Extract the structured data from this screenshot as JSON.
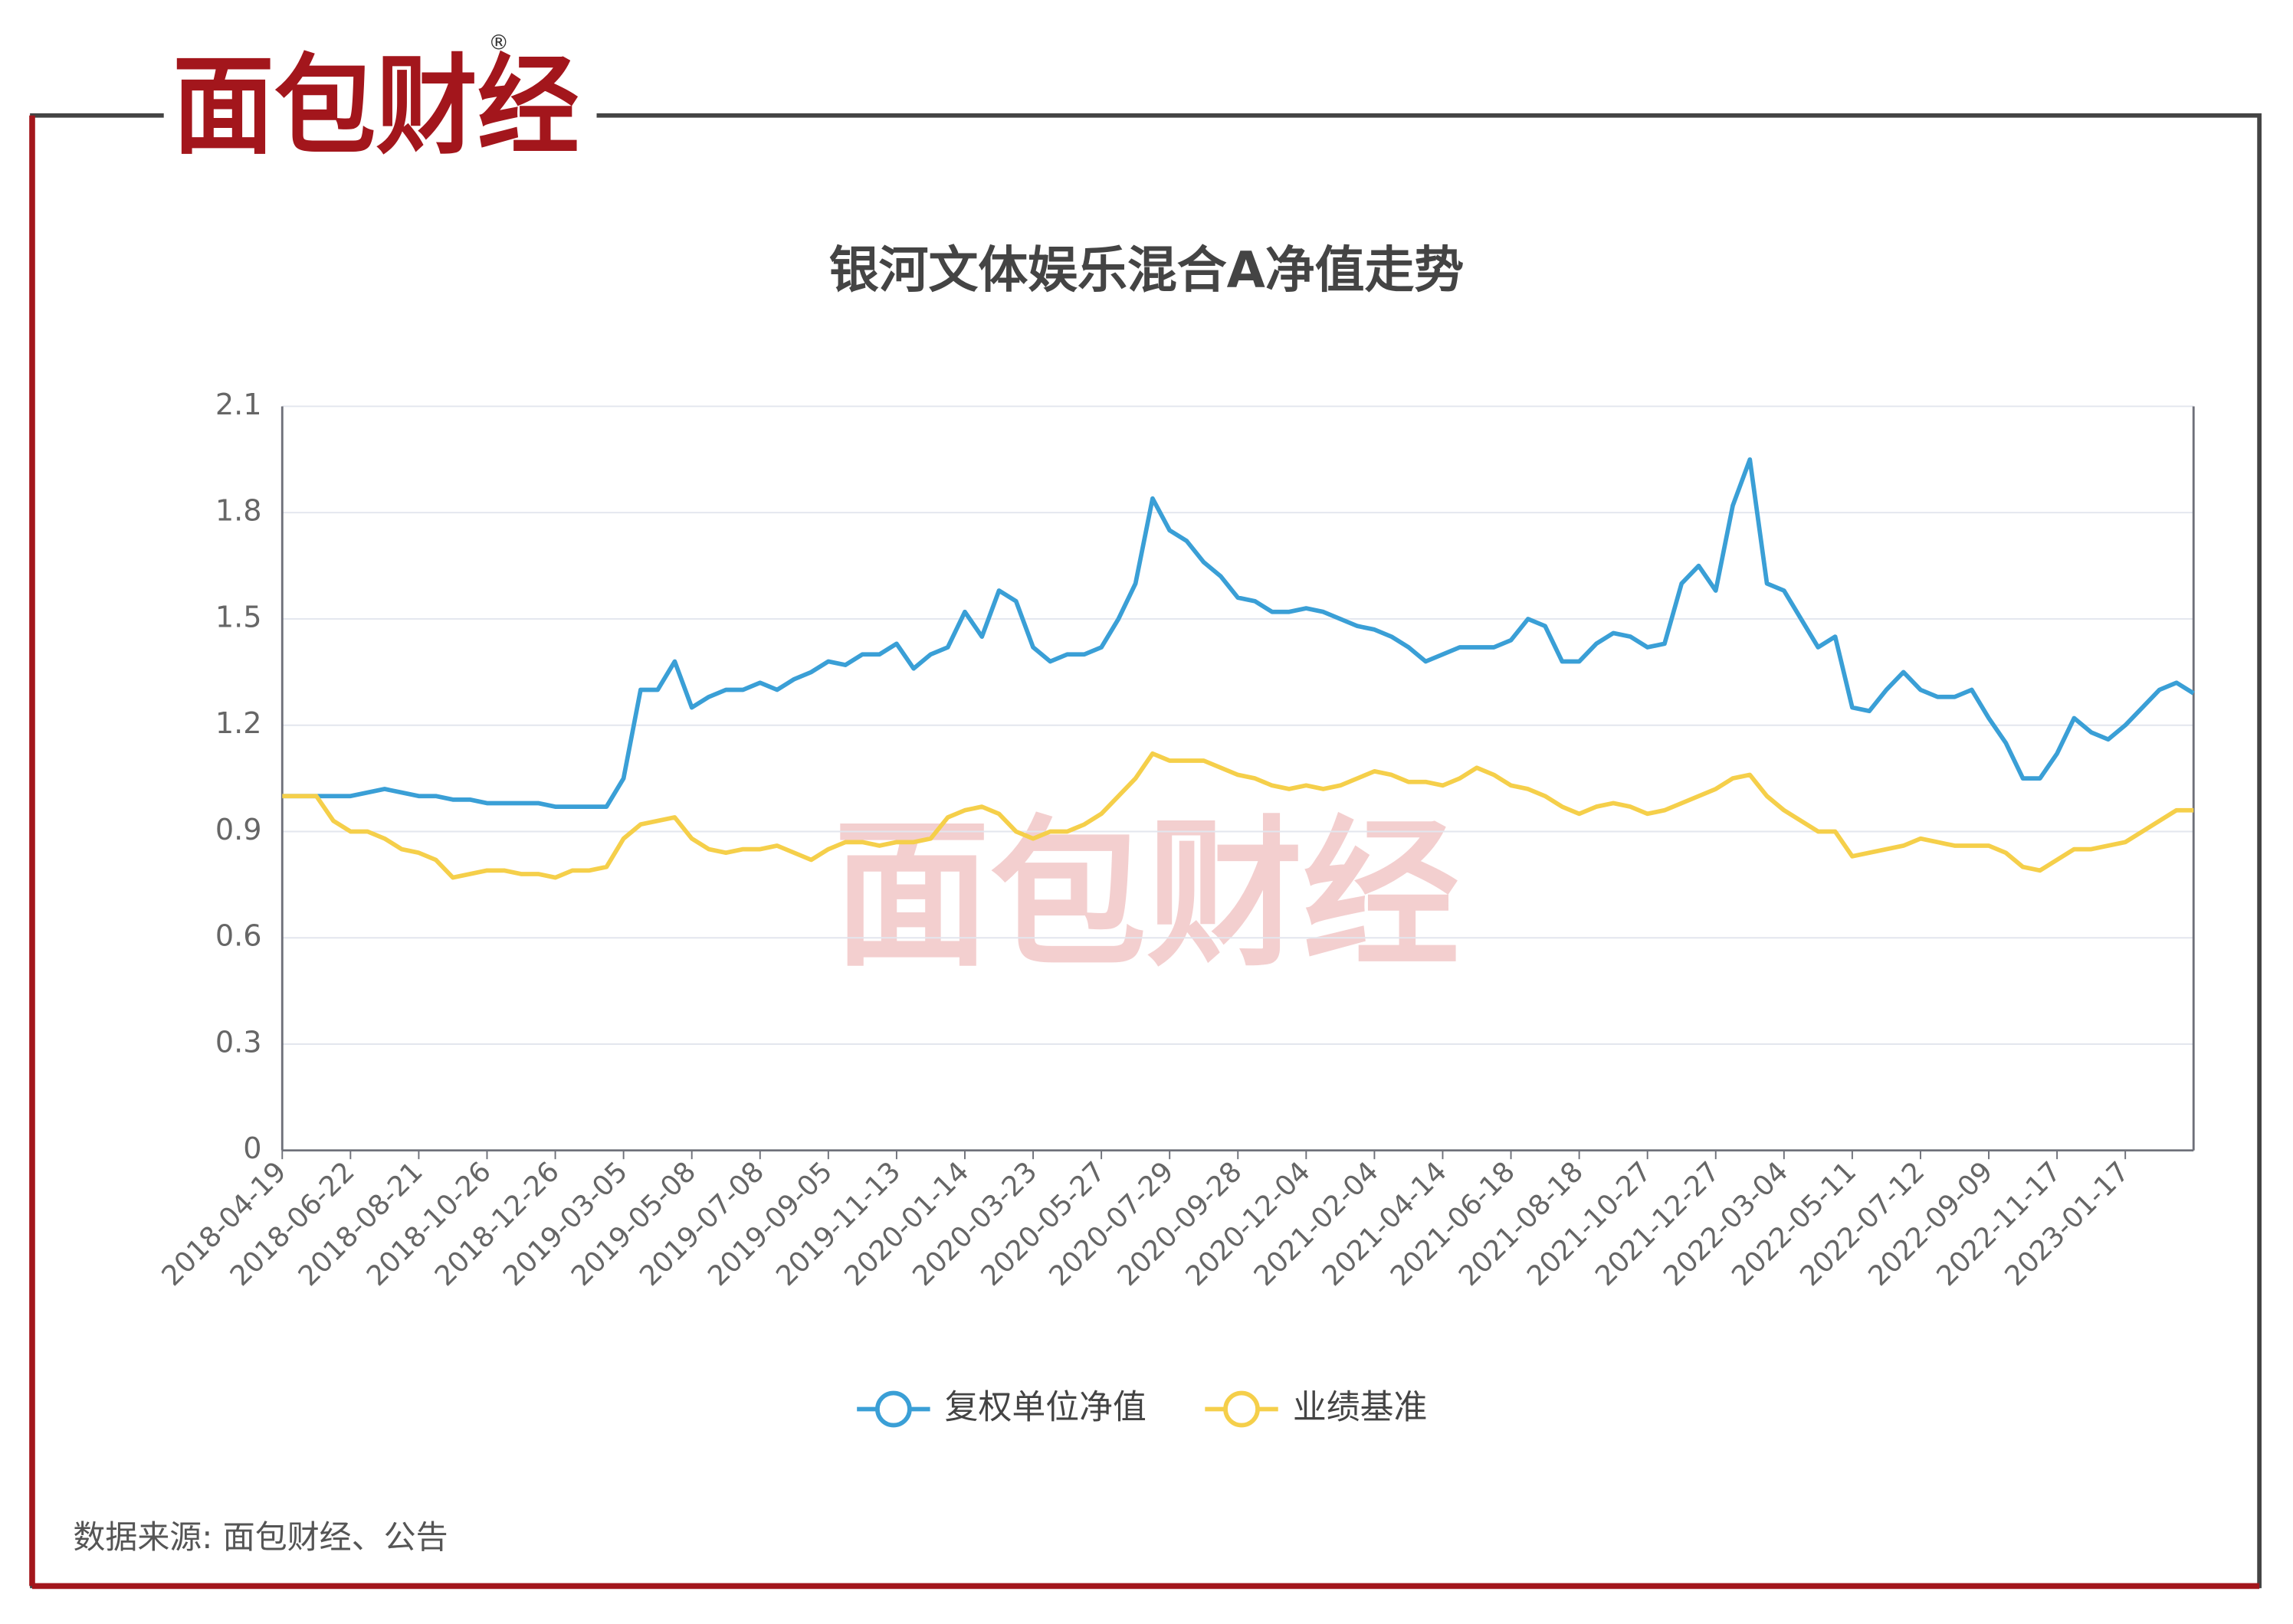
{
  "brand": "面包财经",
  "brand_mark": "®",
  "source": "数据来源: 面包财经、公告",
  "chart_data": {
    "type": "line",
    "title": "银河文体娱乐混合A净值走势",
    "categories": [
      "2018-04-19",
      null,
      null,
      null,
      "2018-06-22",
      null,
      null,
      null,
      "2018-08-21",
      null,
      null,
      null,
      "2018-10-26",
      null,
      null,
      null,
      "2018-12-26",
      null,
      null,
      null,
      "2019-03-05",
      null,
      null,
      null,
      "2019-05-08",
      null,
      null,
      null,
      "2019-07-08",
      null,
      null,
      null,
      "2019-09-05",
      null,
      null,
      null,
      "2019-11-13",
      null,
      null,
      null,
      "2020-01-14",
      null,
      null,
      null,
      "2020-03-23",
      null,
      null,
      null,
      "2020-05-27",
      null,
      null,
      null,
      "2020-07-29",
      null,
      null,
      null,
      "2020-09-28",
      null,
      null,
      null,
      "2020-12-04",
      null,
      null,
      null,
      "2021-02-04",
      null,
      null,
      null,
      "2021-04-14",
      null,
      null,
      null,
      "2021-06-18",
      null,
      null,
      null,
      "2021-08-18",
      null,
      null,
      null,
      "2021-10-27",
      null,
      null,
      null,
      "2021-12-27",
      null,
      null,
      null,
      "2022-03-04",
      null,
      null,
      null,
      "2022-05-11",
      null,
      null,
      null,
      "2022-07-12",
      null,
      null,
      null,
      "2022-09-09",
      null,
      null,
      null,
      "2022-11-17",
      null,
      null,
      null,
      "2023-01-17",
      null,
      null,
      null,
      null
    ],
    "series": [
      {
        "name": "复权单位净值",
        "color": "#3a9fd6",
        "values": [
          1.0,
          1.0,
          1.0,
          1.0,
          1.0,
          1.01,
          1.02,
          1.01,
          1.0,
          1.0,
          0.99,
          0.99,
          0.98,
          0.98,
          0.98,
          0.98,
          0.97,
          0.97,
          0.97,
          0.97,
          1.05,
          1.3,
          1.3,
          1.38,
          1.25,
          1.28,
          1.3,
          1.3,
          1.32,
          1.3,
          1.33,
          1.35,
          1.38,
          1.37,
          1.4,
          1.4,
          1.43,
          1.36,
          1.4,
          1.42,
          1.52,
          1.45,
          1.58,
          1.55,
          1.42,
          1.38,
          1.4,
          1.4,
          1.42,
          1.5,
          1.6,
          1.84,
          1.75,
          1.72,
          1.66,
          1.62,
          1.56,
          1.55,
          1.52,
          1.52,
          1.53,
          1.52,
          1.5,
          1.48,
          1.47,
          1.45,
          1.42,
          1.38,
          1.4,
          1.42,
          1.42,
          1.42,
          1.44,
          1.5,
          1.48,
          1.38,
          1.38,
          1.43,
          1.46,
          1.45,
          1.42,
          1.43,
          1.6,
          1.65,
          1.58,
          1.82,
          1.95,
          1.6,
          1.58,
          1.5,
          1.42,
          1.45,
          1.25,
          1.24,
          1.3,
          1.35,
          1.3,
          1.28,
          1.28,
          1.3,
          1.22,
          1.15,
          1.05,
          1.05,
          1.12,
          1.22,
          1.18,
          1.16,
          1.2,
          1.25,
          1.3,
          1.32,
          1.29
        ]
      },
      {
        "name": "业绩基准",
        "color": "#f5cf4a",
        "values": [
          1.0,
          1.0,
          1.0,
          0.93,
          0.9,
          0.9,
          0.88,
          0.85,
          0.84,
          0.82,
          0.77,
          0.78,
          0.79,
          0.79,
          0.78,
          0.78,
          0.77,
          0.79,
          0.79,
          0.8,
          0.88,
          0.92,
          0.93,
          0.94,
          0.88,
          0.85,
          0.84,
          0.85,
          0.85,
          0.86,
          0.84,
          0.82,
          0.85,
          0.87,
          0.87,
          0.86,
          0.87,
          0.87,
          0.88,
          0.94,
          0.96,
          0.97,
          0.95,
          0.9,
          0.88,
          0.9,
          0.9,
          0.92,
          0.95,
          1.0,
          1.05,
          1.12,
          1.1,
          1.1,
          1.1,
          1.08,
          1.06,
          1.05,
          1.03,
          1.02,
          1.03,
          1.02,
          1.03,
          1.05,
          1.07,
          1.06,
          1.04,
          1.04,
          1.03,
          1.05,
          1.08,
          1.06,
          1.03,
          1.02,
          1.0,
          0.97,
          0.95,
          0.97,
          0.98,
          0.97,
          0.95,
          0.96,
          0.98,
          1.0,
          1.02,
          1.05,
          1.06,
          1.0,
          0.96,
          0.93,
          0.9,
          0.9,
          0.83,
          0.84,
          0.85,
          0.86,
          0.88,
          0.87,
          0.86,
          0.86,
          0.86,
          0.84,
          0.8,
          0.79,
          0.82,
          0.85,
          0.85,
          0.86,
          0.87,
          0.9,
          0.93,
          0.96,
          0.96
        ]
      }
    ],
    "ylim": [
      0,
      2.1
    ],
    "yticks": [
      0,
      0.3,
      0.6,
      0.9,
      1.2,
      1.5,
      1.8,
      2.1
    ],
    "grid": true,
    "legend": "bottom"
  }
}
